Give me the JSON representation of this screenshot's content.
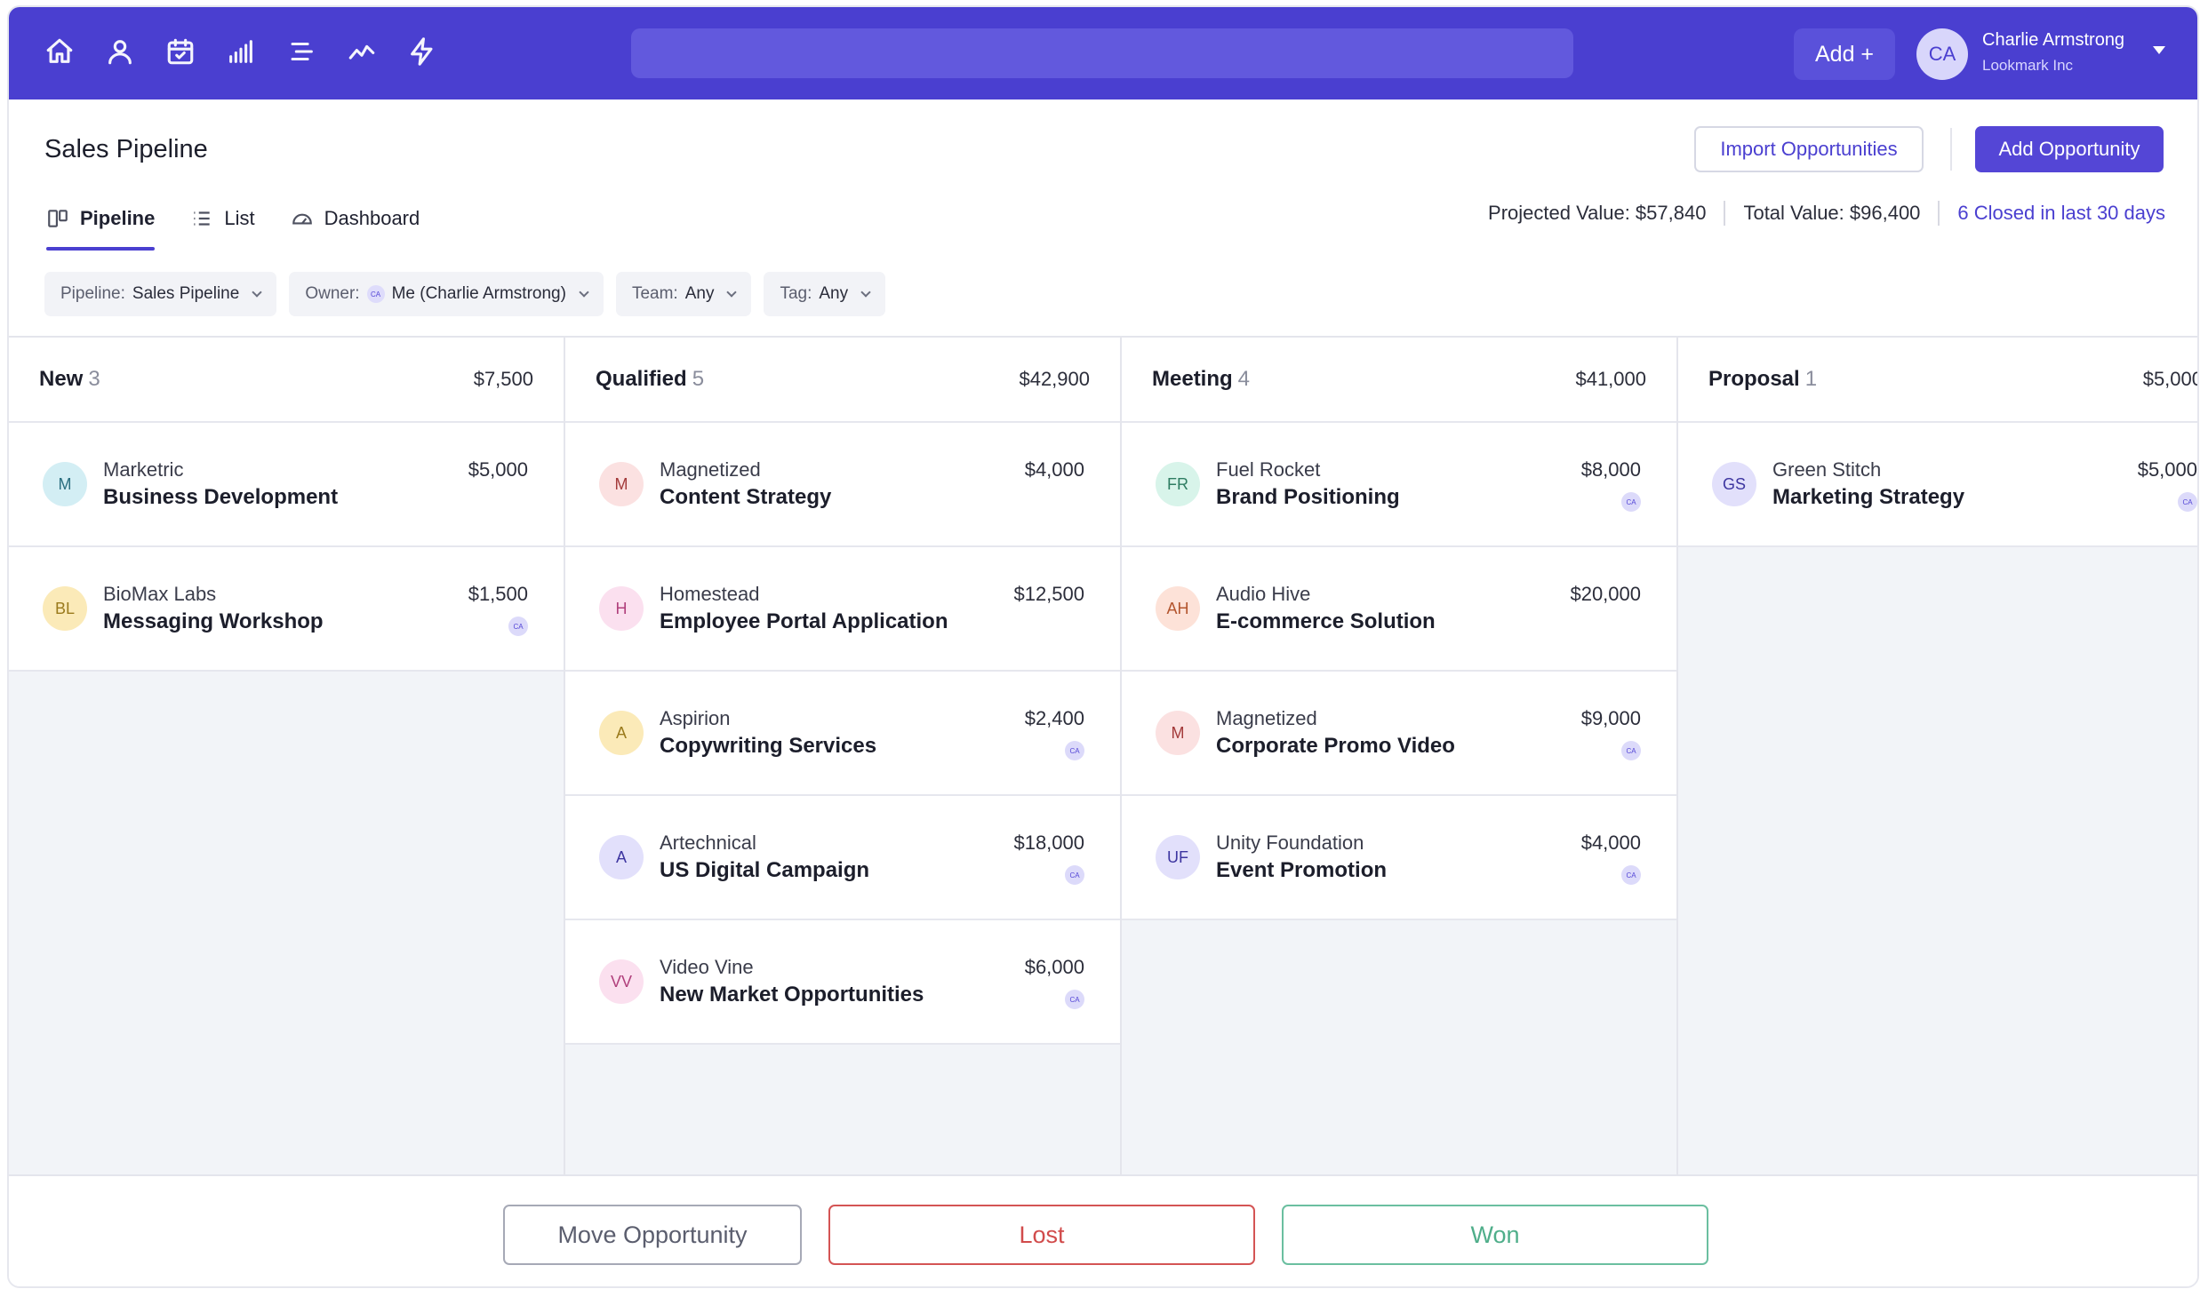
{
  "topbar": {
    "nav_icons": [
      "home-icon",
      "user-icon",
      "calendar-icon",
      "signal-bars-icon",
      "menu-lines-icon",
      "trend-icon",
      "lightning-icon"
    ],
    "search_placeholder": "",
    "add_label": "Add +",
    "user": {
      "initials": "CA",
      "name": "Charlie Armstrong",
      "org": "Lookmark Inc"
    }
  },
  "header": {
    "title": "Sales Pipeline",
    "import_label": "Import Opportunities",
    "add_opportunity_label": "Add Opportunity",
    "tabs": [
      {
        "label": "Pipeline",
        "icon": "pipeline-icon",
        "active": true
      },
      {
        "label": "List",
        "icon": "list-icon",
        "active": false
      },
      {
        "label": "Dashboard",
        "icon": "gauge-icon",
        "active": false
      }
    ],
    "stats": {
      "projected": "Projected Value: $57,840",
      "total": "Total Value: $96,400",
      "closed": "6 Closed in last 30 days"
    }
  },
  "filters": [
    {
      "label": "Pipeline:",
      "value": "Sales Pipeline"
    },
    {
      "label": "Owner:",
      "value": "Me (Charlie Armstrong)",
      "avatar": "CA"
    },
    {
      "label": "Team:",
      "value": "Any"
    },
    {
      "label": "Tag:",
      "value": "Any"
    }
  ],
  "columns": [
    {
      "name": "New",
      "count": "3",
      "total": "$7,500",
      "cards": [
        {
          "initials": "M",
          "company": "Marketric",
          "title": "Business Development",
          "value": "$5,000",
          "owner": "",
          "avatar_bg": "#d3eef4",
          "avatar_fg": "#2b6f80"
        },
        {
          "initials": "BL",
          "company": "BioMax Labs",
          "title": "Messaging Workshop",
          "value": "$1,500",
          "owner": "CA",
          "avatar_bg": "#fbeab8",
          "avatar_fg": "#9a7a1c"
        }
      ]
    },
    {
      "name": "Qualified",
      "count": "5",
      "total": "$42,900",
      "cards": [
        {
          "initials": "M",
          "company": "Magnetized",
          "title": "Content Strategy",
          "value": "$4,000",
          "owner": "",
          "avatar_bg": "#fbe1e1",
          "avatar_fg": "#a33a3a"
        },
        {
          "initials": "H",
          "company": "Homestead",
          "title": "Employee Portal Application",
          "value": "$12,500",
          "owner": "",
          "avatar_bg": "#fbe0ef",
          "avatar_fg": "#b0407c"
        },
        {
          "initials": "A",
          "company": "Aspirion",
          "title": "Copywriting Services",
          "value": "$2,400",
          "owner": "CA",
          "avatar_bg": "#fbeab8",
          "avatar_fg": "#9a7a1c"
        },
        {
          "initials": "A",
          "company": "Artechnical",
          "title": "US Digital Campaign",
          "value": "$18,000",
          "owner": "CA",
          "avatar_bg": "#e2e0fb",
          "avatar_fg": "#3d35a0"
        },
        {
          "initials": "VV",
          "company": "Video Vine",
          "title": "New Market Opportunities",
          "value": "$6,000",
          "owner": "CA",
          "avatar_bg": "#fbe0ef",
          "avatar_fg": "#b0407c"
        }
      ]
    },
    {
      "name": "Meeting",
      "count": "4",
      "total": "$41,000",
      "cards": [
        {
          "initials": "FR",
          "company": "Fuel Rocket",
          "title": "Brand Positioning",
          "value": "$8,000",
          "owner": "CA",
          "avatar_bg": "#d8f4ea",
          "avatar_fg": "#2e7d62"
        },
        {
          "initials": "AH",
          "company": "Audio Hive",
          "title": "E-commerce Solution",
          "value": "$20,000",
          "owner": "",
          "avatar_bg": "#fde2d8",
          "avatar_fg": "#b3552e"
        },
        {
          "initials": "M",
          "company": "Magnetized",
          "title": "Corporate Promo Video",
          "value": "$9,000",
          "owner": "CA",
          "avatar_bg": "#fbe1e1",
          "avatar_fg": "#a33a3a"
        },
        {
          "initials": "UF",
          "company": "Unity Foundation",
          "title": "Event Promotion",
          "value": "$4,000",
          "owner": "CA",
          "avatar_bg": "#e2e0fb",
          "avatar_fg": "#3d35a0"
        }
      ]
    },
    {
      "name": "Proposal",
      "count": "1",
      "total": "$5,000",
      "cards": [
        {
          "initials": "GS",
          "company": "Green Stitch",
          "title": "Marketing Strategy",
          "value": "$5,000",
          "owner": "CA",
          "avatar_bg": "#e2e0fb",
          "avatar_fg": "#3d35a0"
        }
      ]
    }
  ],
  "footer": {
    "move_label": "Move Opportunity",
    "lost_label": "Lost",
    "won_label": "Won"
  }
}
